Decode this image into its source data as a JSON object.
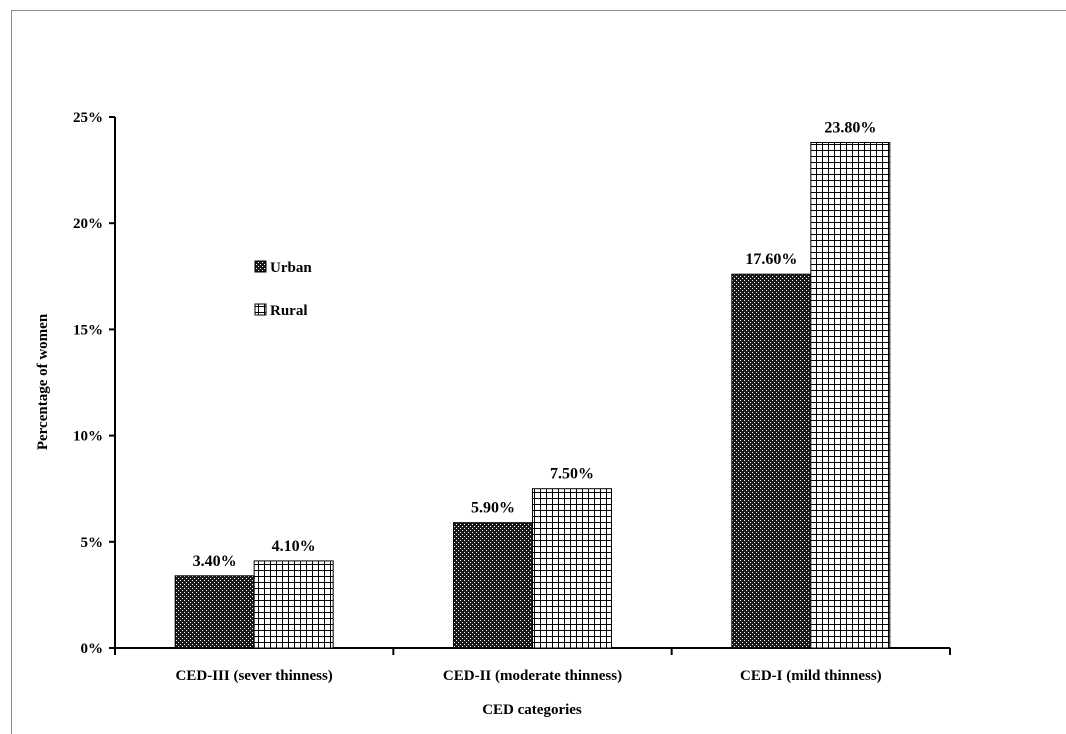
{
  "chart_data": {
    "type": "bar",
    "title": "",
    "xlabel": "CED categories",
    "ylabel": "Percentage of women",
    "ylim": [
      0,
      25
    ],
    "yticks": [
      "0%",
      "5%",
      "10%",
      "15%",
      "20%",
      "25%"
    ],
    "ytick_values": [
      0,
      5,
      10,
      15,
      20,
      25
    ],
    "categories": [
      "CED-III (sever thinness)",
      "CED-II (moderate thinness)",
      "CED-I (mild thinness)"
    ],
    "series": [
      {
        "name": "Urban",
        "pattern": "dense-dots",
        "color": "#1a1a1a",
        "values": [
          3.4,
          5.9,
          17.6
        ],
        "labels": [
          "3.40%",
          "5.90%",
          "17.60%"
        ]
      },
      {
        "name": "Rural",
        "pattern": "grid",
        "color": "#ffffff",
        "values": [
          4.1,
          7.5,
          23.8
        ],
        "labels": [
          "4.10%",
          "7.50%",
          "23.80%"
        ]
      }
    ],
    "legend_position": "upper-left inside plot",
    "grid": false
  }
}
